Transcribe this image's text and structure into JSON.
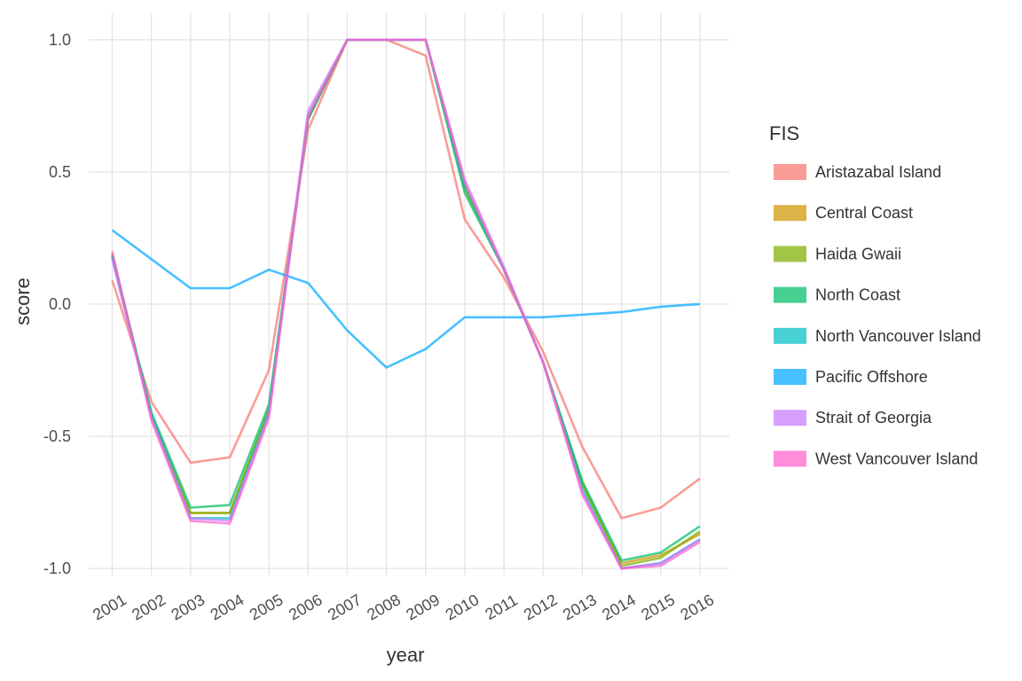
{
  "chart_data": {
    "type": "line",
    "xlabel": "year",
    "ylabel": "score",
    "x": [
      2001,
      2002,
      2003,
      2004,
      2005,
      2006,
      2007,
      2008,
      2009,
      2010,
      2011,
      2012,
      2013,
      2014,
      2015,
      2016
    ],
    "x_tick_labels": [
      "2001",
      "2002",
      "2003",
      "2004",
      "2005",
      "2006",
      "2007",
      "2008",
      "2009",
      "2010",
      "2011",
      "2012",
      "2013",
      "2014",
      "2015",
      "2016"
    ],
    "ylim": [
      -1.03,
      1.1
    ],
    "y_ticks": [
      -1.0,
      -0.5,
      0.0,
      0.5,
      1.0
    ],
    "y_tick_labels": [
      "-1.0",
      "-0.5",
      "0.0",
      "0.5",
      "1.0"
    ],
    "grid": true,
    "legend": {
      "title": "FIS",
      "position": "right"
    },
    "series": [
      {
        "name": "Aristazabal Island",
        "color": "#F8766D",
        "values": [
          0.09,
          -0.37,
          -0.6,
          -0.58,
          -0.25,
          0.66,
          1.0,
          1.0,
          0.94,
          0.32,
          0.1,
          -0.18,
          -0.54,
          -0.81,
          -0.77,
          -0.66
        ]
      },
      {
        "name": "Central Coast",
        "color": "#CD9600",
        "values": [
          0.19,
          -0.42,
          -0.79,
          -0.79,
          -0.4,
          0.7,
          1.0,
          1.0,
          1.0,
          0.44,
          0.13,
          -0.22,
          -0.68,
          -0.98,
          -0.95,
          -0.87
        ]
      },
      {
        "name": "Haida Gwaii",
        "color": "#7CAE00",
        "values": [
          0.19,
          -0.42,
          -0.79,
          -0.79,
          -0.4,
          0.7,
          1.0,
          1.0,
          1.0,
          0.44,
          0.13,
          -0.22,
          -0.68,
          -0.99,
          -0.96,
          -0.86
        ]
      },
      {
        "name": "North Coast",
        "color": "#00BE67",
        "values": [
          0.18,
          -0.41,
          -0.77,
          -0.76,
          -0.38,
          0.7,
          1.0,
          1.0,
          1.0,
          0.42,
          0.13,
          -0.22,
          -0.67,
          -0.97,
          -0.94,
          -0.84
        ]
      },
      {
        "name": "North Vancouver Island",
        "color": "#00BFC4",
        "values": [
          0.18,
          -0.42,
          -0.81,
          -0.81,
          -0.41,
          0.71,
          1.0,
          1.0,
          1.0,
          0.45,
          0.13,
          -0.22,
          -0.7,
          -1.0,
          -0.98,
          -0.89
        ]
      },
      {
        "name": "Pacific Offshore",
        "color": "#00A9FF",
        "values": [
          0.28,
          0.17,
          0.06,
          0.06,
          0.13,
          0.08,
          -0.1,
          -0.24,
          -0.17,
          -0.05,
          -0.05,
          -0.05,
          -0.04,
          -0.03,
          -0.01,
          0.0
        ]
      },
      {
        "name": "Strait of Georgia",
        "color": "#C77CFF",
        "values": [
          0.17,
          -0.43,
          -0.81,
          -0.82,
          -0.42,
          0.73,
          1.0,
          1.0,
          1.0,
          0.47,
          0.14,
          -0.22,
          -0.71,
          -1.0,
          -0.98,
          -0.89
        ]
      },
      {
        "name": "West Vancouver Island",
        "color": "#FF61CC",
        "values": [
          0.2,
          -0.44,
          -0.82,
          -0.83,
          -0.43,
          0.71,
          1.0,
          1.0,
          1.0,
          0.46,
          0.13,
          -0.22,
          -0.72,
          -1.0,
          -0.99,
          -0.9
        ]
      }
    ]
  }
}
